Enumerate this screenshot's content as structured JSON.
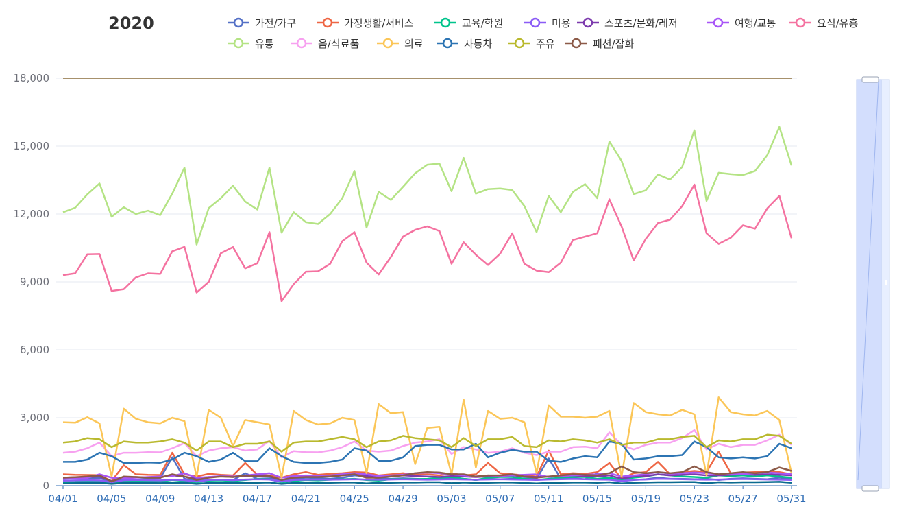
{
  "title": "2020",
  "chart_data": {
    "type": "line",
    "x": [
      "04/01",
      "04/02",
      "04/03",
      "04/04",
      "04/05",
      "04/06",
      "04/07",
      "04/08",
      "04/09",
      "04/10",
      "04/11",
      "04/12",
      "04/13",
      "04/14",
      "04/15",
      "04/16",
      "04/17",
      "04/18",
      "04/19",
      "04/20",
      "04/21",
      "04/22",
      "04/23",
      "04/24",
      "04/25",
      "04/26",
      "04/27",
      "04/28",
      "04/29",
      "04/30",
      "05/01",
      "05/02",
      "05/03",
      "05/04",
      "05/05",
      "05/06",
      "05/07",
      "05/08",
      "05/09",
      "05/10",
      "05/11",
      "05/12",
      "05/13",
      "05/14",
      "05/15",
      "05/16",
      "05/17",
      "05/18",
      "05/19",
      "05/20",
      "05/21",
      "05/22",
      "05/23",
      "05/24",
      "05/25",
      "05/26",
      "05/27",
      "05/28",
      "05/29",
      "05/30",
      "05/31"
    ],
    "x_tick_labels": [
      "04/01",
      "04/05",
      "04/09",
      "04/13",
      "04/17",
      "04/21",
      "04/25",
      "04/29",
      "05/03",
      "05/07",
      "05/11",
      "05/15",
      "05/19",
      "05/23",
      "05/27",
      "05/31"
    ],
    "ylim": [
      0,
      18000
    ],
    "y_ticks": [
      "0",
      "3,000",
      "6,000",
      "9,000",
      "12,000",
      "15,000",
      "18,000"
    ],
    "grid": true,
    "legend_position": "top",
    "series": [
      {
        "name": "가전/가구",
        "color": "#5470c6",
        "values": [
          300,
          320,
          330,
          340,
          150,
          280,
          260,
          300,
          320,
          1250,
          300,
          220,
          250,
          260,
          240,
          550,
          300,
          320,
          200,
          300,
          350,
          330,
          300,
          350,
          450,
          400,
          320,
          300,
          320,
          300,
          280,
          300,
          350,
          300,
          250,
          300,
          280,
          300,
          320,
          300,
          1200,
          300,
          320,
          280,
          550,
          300,
          200,
          250,
          280,
          350,
          300,
          300,
          280,
          300,
          250,
          300,
          320,
          300,
          280,
          350,
          300
        ]
      },
      {
        "name": "가정생활/서비스",
        "color": "#ee6644",
        "values": [
          500,
          480,
          470,
          460,
          200,
          900,
          500,
          480,
          470,
          1450,
          500,
          400,
          520,
          480,
          450,
          1000,
          480,
          450,
          350,
          500,
          600,
          480,
          520,
          550,
          600,
          580,
          450,
          500,
          550,
          480,
          500,
          450,
          550,
          450,
          500,
          1000,
          550,
          500,
          450,
          400,
          1550,
          500,
          550,
          520,
          600,
          1000,
          300,
          550,
          600,
          1050,
          500,
          600,
          650,
          600,
          1500,
          550,
          580,
          600,
          620,
          600,
          500
        ]
      },
      {
        "name": "교육/학원",
        "color": "#00c48c",
        "values": [
          150,
          160,
          200,
          180,
          100,
          200,
          220,
          200,
          180,
          250,
          200,
          150,
          220,
          230,
          200,
          250,
          300,
          280,
          150,
          200,
          250,
          230,
          260,
          280,
          300,
          250,
          220,
          280,
          300,
          280,
          300,
          350,
          380,
          300,
          250,
          350,
          380,
          380,
          300,
          250,
          300,
          350,
          380,
          380,
          300,
          350,
          250,
          350,
          400,
          500,
          450,
          400,
          380,
          350,
          450,
          420,
          450,
          400,
          450,
          400,
          350
        ]
      },
      {
        "name": "미용",
        "color": "#8b5cf6",
        "values": [
          220,
          230,
          240,
          230,
          150,
          240,
          250,
          240,
          230,
          260,
          240,
          180,
          250,
          260,
          240,
          270,
          280,
          270,
          180,
          250,
          260,
          270,
          260,
          270,
          280,
          270,
          260,
          270,
          280,
          270,
          260,
          270,
          280,
          270,
          260,
          270,
          280,
          270,
          260,
          250,
          270,
          280,
          290,
          280,
          270,
          260,
          200,
          260,
          270,
          300,
          290,
          280,
          270,
          260,
          270,
          280,
          290,
          280,
          270,
          260,
          250
        ]
      },
      {
        "name": "스포츠/문화/레저",
        "color": "#7c3aad",
        "values": [
          350,
          370,
          380,
          400,
          200,
          350,
          380,
          360,
          380,
          450,
          400,
          300,
          380,
          400,
          380,
          420,
          450,
          400,
          250,
          380,
          400,
          420,
          400,
          450,
          500,
          420,
          380,
          420,
          450,
          420,
          400,
          380,
          420,
          400,
          380,
          400,
          420,
          450,
          400,
          380,
          400,
          420,
          450,
          420,
          400,
          450,
          300,
          400,
          420,
          500,
          450,
          480,
          500,
          450,
          450,
          480,
          500,
          480,
          500,
          480,
          450
        ]
      },
      {
        "name": "여행/교통",
        "color": "#a855f7",
        "values": [
          300,
          320,
          340,
          500,
          350,
          320,
          350,
          380,
          400,
          420,
          550,
          350,
          380,
          420,
          400,
          450,
          500,
          550,
          350,
          420,
          450,
          430,
          450,
          500,
          550,
          500,
          420,
          450,
          480,
          550,
          580,
          550,
          500,
          450,
          400,
          450,
          420,
          450,
          480,
          500,
          380,
          420,
          450,
          480,
          500,
          550,
          400,
          450,
          500,
          600,
          520,
          550,
          580,
          550,
          500,
          520,
          500,
          550,
          580,
          550,
          500
        ]
      },
      {
        "name": "요식/유흥",
        "color": "#f472a0",
        "values": [
          9300,
          9380,
          10220,
          10230,
          8600,
          8680,
          9200,
          9380,
          9350,
          10350,
          10550,
          8530,
          9000,
          10270,
          10540,
          9600,
          9820,
          11200,
          8150,
          8900,
          9450,
          9470,
          9800,
          10800,
          11200,
          9850,
          9330,
          10100,
          11000,
          11300,
          11450,
          11250,
          9800,
          10750,
          10200,
          9750,
          10250,
          11150,
          9800,
          9500,
          9430,
          9850,
          10850,
          11000,
          11150,
          12650,
          11450,
          9950,
          10900,
          11600,
          11750,
          12350,
          13300,
          11150,
          10680,
          10950,
          11500,
          11350,
          12250,
          12800,
          10930
        ]
      },
      {
        "name": "유통",
        "color": "#b4e384",
        "values": [
          12080,
          12280,
          12870,
          13350,
          11880,
          12300,
          12000,
          12150,
          11950,
          12900,
          14050,
          10650,
          12260,
          12700,
          13250,
          12550,
          12200,
          14050,
          11180,
          12080,
          11640,
          11560,
          12000,
          12700,
          13900,
          11400,
          12980,
          12620,
          13200,
          13800,
          14180,
          14230,
          13010,
          14480,
          12900,
          13100,
          13130,
          13060,
          12350,
          11200,
          12800,
          12080,
          12980,
          13320,
          12700,
          15200,
          14350,
          12880,
          13050,
          13750,
          13520,
          14080,
          15700,
          12580,
          13820,
          13760,
          13720,
          13900,
          14600,
          15850,
          14150
        ]
      },
      {
        "name": "음/식료품",
        "color": "#f7a1f0",
        "values": [
          1450,
          1500,
          1650,
          1900,
          1300,
          1450,
          1450,
          1480,
          1470,
          1650,
          1880,
          1300,
          1550,
          1650,
          1700,
          1550,
          1600,
          1980,
          1250,
          1520,
          1480,
          1470,
          1550,
          1700,
          1950,
          1550,
          1500,
          1550,
          1750,
          1900,
          1950,
          2050,
          1400,
          1700,
          1600,
          1450,
          1500,
          1650,
          1450,
          1350,
          1500,
          1500,
          1700,
          1720,
          1650,
          2350,
          1800,
          1600,
          1800,
          1900,
          1900,
          2100,
          2450,
          1600,
          1850,
          1700,
          1800,
          1800,
          2000,
          2250,
          1800
        ]
      },
      {
        "name": "의료",
        "color": "#fbc658",
        "values": [
          2800,
          2780,
          3020,
          2750,
          400,
          3400,
          2950,
          2800,
          2750,
          3000,
          2850,
          400,
          3350,
          3000,
          1750,
          2900,
          2800,
          2700,
          350,
          3300,
          2900,
          2700,
          2750,
          3000,
          2900,
          550,
          3600,
          3200,
          3250,
          950,
          2550,
          2600,
          500,
          3800,
          800,
          3300,
          2950,
          3000,
          2800,
          550,
          3550,
          3050,
          3050,
          3000,
          3050,
          3300,
          400,
          3650,
          3250,
          3150,
          3100,
          3350,
          3150,
          450,
          3900,
          3250,
          3150,
          3100,
          3300,
          2900,
          550
        ]
      },
      {
        "name": "자동차",
        "color": "#2c74b3",
        "values": [
          1050,
          1050,
          1150,
          1450,
          1300,
          1000,
          1000,
          1020,
          1010,
          1150,
          1450,
          1300,
          1050,
          1150,
          1450,
          1080,
          1080,
          1650,
          1300,
          1050,
          1000,
          1000,
          1050,
          1150,
          1650,
          1550,
          1100,
          1100,
          1250,
          1750,
          1800,
          1800,
          1600,
          1600,
          1850,
          1250,
          1450,
          1580,
          1500,
          1500,
          1100,
          1050,
          1200,
          1300,
          1250,
          1950,
          1850,
          1150,
          1200,
          1300,
          1300,
          1350,
          1950,
          1700,
          1250,
          1200,
          1250,
          1200,
          1300,
          1850,
          1650
        ]
      },
      {
        "name": "주유",
        "color": "#b9b92e",
        "values": [
          1900,
          1950,
          2100,
          2050,
          1700,
          1950,
          1900,
          1900,
          1950,
          2050,
          1900,
          1550,
          1950,
          1950,
          1700,
          1850,
          1850,
          1950,
          1500,
          1900,
          1950,
          1950,
          2050,
          2150,
          2050,
          1700,
          1950,
          2000,
          2200,
          2100,
          2050,
          2000,
          1700,
          2100,
          1750,
          2050,
          2050,
          2150,
          1750,
          1700,
          2000,
          1950,
          2050,
          2000,
          1900,
          2050,
          1800,
          1900,
          1900,
          2050,
          2050,
          2150,
          2200,
          1700,
          2000,
          1950,
          2050,
          2050,
          2250,
          2200,
          1850
        ]
      },
      {
        "name": "패션/잡화",
        "color": "#8c5a48",
        "values": [
          350,
          370,
          400,
          450,
          180,
          400,
          380,
          350,
          350,
          500,
          400,
          250,
          350,
          400,
          380,
          450,
          400,
          420,
          250,
          350,
          380,
          380,
          400,
          450,
          500,
          350,
          350,
          400,
          450,
          550,
          600,
          580,
          500,
          500,
          400,
          450,
          450,
          500,
          400,
          350,
          400,
          450,
          500,
          480,
          450,
          550,
          850,
          600,
          550,
          600,
          550,
          600,
          850,
          600,
          500,
          550,
          600,
          550,
          600,
          800,
          650
        ]
      },
      {
        "name": "",
        "color": "#0b6b8f",
        "values": [
          100,
          110,
          120,
          130,
          80,
          120,
          120,
          120,
          110,
          130,
          130,
          80,
          120,
          120,
          130,
          130,
          130,
          140,
          80,
          120,
          120,
          120,
          130,
          140,
          140,
          100,
          130,
          130,
          140,
          140,
          150,
          150,
          110,
          140,
          120,
          130,
          140,
          140,
          120,
          100,
          130,
          130,
          140,
          140,
          130,
          150,
          100,
          130,
          140,
          150,
          150,
          160,
          160,
          110,
          150,
          140,
          150,
          150,
          160,
          170,
          130
        ]
      },
      {
        "name": "",
        "color": "#8a6d3b",
        "values": [
          18000,
          18000,
          18000,
          18000,
          18000,
          18000,
          18000,
          18000,
          18000,
          18000,
          18000,
          18000,
          18000,
          18000,
          18000,
          18000,
          18000,
          18000,
          18000,
          18000,
          18000,
          18000,
          18000,
          18000,
          18000,
          18000,
          18000,
          18000,
          18000,
          18000,
          18000,
          18000,
          18000,
          18000,
          18000,
          18000,
          18000,
          18000,
          18000,
          18000,
          18000,
          18000,
          18000,
          18000,
          18000,
          18000,
          18000,
          18000,
          18000,
          18000,
          18000,
          18000,
          18000,
          18000,
          18000,
          18000,
          18000,
          18000,
          18000,
          18000,
          18000
        ]
      }
    ]
  }
}
